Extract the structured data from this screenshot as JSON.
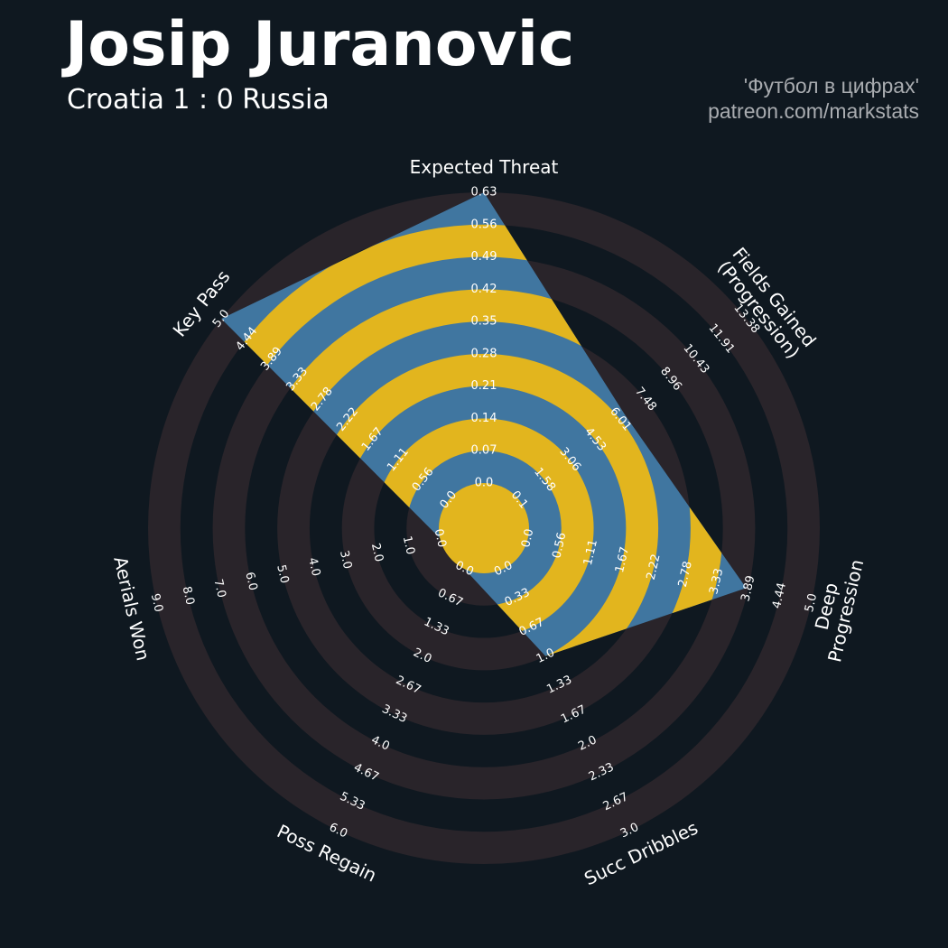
{
  "chart_data": {
    "type": "radar",
    "title": "Josip Juranovic",
    "subtitle": "Croatia 1 : 0 Russia",
    "credits": [
      "'Футбол в цифрах'",
      "patreon.com/markstats"
    ],
    "params": [
      "Expected Threat",
      "Fields Gained\n(Progression)",
      "Deep Progression",
      "Succ Dribbles",
      "Poss Regain",
      "Aerials Won",
      "Key Pass"
    ],
    "lims": [
      [
        0,
        0.63
      ],
      [
        0.1,
        13.38
      ],
      [
        0,
        5
      ],
      [
        0,
        3
      ],
      [
        0,
        6
      ],
      [
        0,
        9
      ],
      [
        0,
        5
      ]
    ],
    "ticks": [
      [
        {
          "value": 0,
          "label": "0.0"
        },
        0.07,
        0.14,
        0.21,
        0.28,
        0.35,
        0.42,
        0.49,
        0.56,
        0.63
      ],
      [
        0.1,
        1.58,
        3.06,
        4.53,
        6.01,
        7.48,
        8.96,
        10.43,
        11.91,
        13.38
      ],
      [
        {
          "value": 0,
          "label": "0.0"
        },
        0.56,
        1.11,
        1.67,
        2.22,
        2.78,
        3.33,
        3.89,
        4.44,
        {
          "value": 5,
          "label": "5.0"
        }
      ],
      [
        {
          "value": 0,
          "label": "0.0"
        },
        0.33,
        0.67,
        {
          "value": 1,
          "label": "1.0"
        },
        1.33,
        1.67,
        {
          "value": 2,
          "label": "2.0"
        },
        2.33,
        2.67,
        {
          "value": 3,
          "label": "3.0"
        }
      ],
      [
        {
          "value": 0,
          "label": "0.0"
        },
        0.67,
        1.33,
        {
          "value": 2,
          "label": "2.0"
        },
        2.67,
        3.33,
        {
          "value": 4,
          "label": "4.0"
        },
        4.67,
        5.33,
        {
          "value": 6,
          "label": "6.0"
        }
      ],
      [
        {
          "value": 0,
          "label": "0.0"
        },
        {
          "value": 1,
          "label": "1.0"
        },
        {
          "value": 2,
          "label": "2.0"
        },
        {
          "value": 3,
          "label": "3.0"
        },
        {
          "value": 4,
          "label": "4.0"
        },
        {
          "value": 5,
          "label": "5.0"
        },
        {
          "value": 6,
          "label": "6.0"
        },
        {
          "value": 7,
          "label": "7.0"
        },
        {
          "value": 8,
          "label": "8.0"
        },
        {
          "value": 9,
          "label": "9.0"
        }
      ],
      [
        {
          "value": 0,
          "label": "0.0"
        },
        0.56,
        1.11,
        1.67,
        2.22,
        2.78,
        3.33,
        3.89,
        4.44,
        {
          "value": 5,
          "label": "5.0"
        }
      ]
    ],
    "values": [
      0.63,
      6.3,
      3.85,
      1.0,
      0,
      0,
      5.0
    ],
    "color": "#4076a0",
    "ring_color": "#e2b51e",
    "ring_background": "#29242a"
  }
}
